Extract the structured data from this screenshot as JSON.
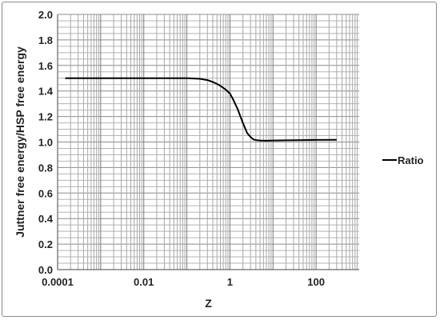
{
  "chart_data": {
    "type": "line",
    "xlabel": "Z",
    "ylabel": "Juttner free energy/HSP free energy",
    "xscale": "log",
    "xlim": [
      0.0001,
      1000
    ],
    "ylim": [
      0,
      2.0
    ],
    "grid": true,
    "x_tick_labels": [
      "0.0001",
      "0.01",
      "1",
      "100"
    ],
    "x_tick_values": [
      0.0001,
      0.01,
      1,
      100
    ],
    "y_tick_labels": [
      "0.0",
      "0.2",
      "0.4",
      "0.6",
      "0.8",
      "1.0",
      "1.2",
      "1.4",
      "1.6",
      "1.8",
      "2.0"
    ],
    "y_tick_values": [
      0,
      0.2,
      0.4,
      0.6,
      0.8,
      1.0,
      1.2,
      1.4,
      1.6,
      1.8,
      2.0
    ],
    "legend_position": "right",
    "series": [
      {
        "name": "Ratio",
        "color": "#000000",
        "x": [
          0.00015,
          0.001,
          0.01,
          0.05,
          0.1,
          0.2,
          0.3,
          0.4,
          0.5,
          0.6,
          0.8,
          1.0,
          1.2,
          1.5,
          2.0,
          2.5,
          3.0,
          3.5,
          4.0,
          5.0,
          7.0,
          10,
          20,
          50,
          100,
          300
        ],
        "y": [
          1.5,
          1.5,
          1.5,
          1.5,
          1.5,
          1.495,
          1.485,
          1.47,
          1.455,
          1.44,
          1.41,
          1.38,
          1.33,
          1.26,
          1.15,
          1.07,
          1.04,
          1.02,
          1.015,
          1.012,
          1.01,
          1.012,
          1.013,
          1.015,
          1.016,
          1.017
        ]
      }
    ]
  }
}
